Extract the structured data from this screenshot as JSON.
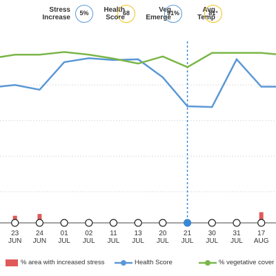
{
  "summary": [
    {
      "label": "Stress\nIncrease",
      "value": "5%",
      "color": "#5a97d6"
    },
    {
      "label": "Health\nScore",
      "value": "68",
      "color": "#f0c419"
    },
    {
      "label": "Veg\nEmerge",
      "value": "91%",
      "color": "#5a97d6"
    },
    {
      "label": "Avg\nTemp",
      "value": "81°",
      "color": "#f0c419"
    }
  ],
  "chart_data": {
    "type": "line",
    "categories": [
      null,
      "23\nJUN",
      "24\nJUN",
      "01\nJUL",
      "02\nJUL",
      "11\nJUL",
      "13\nJUL",
      "20\nJUL",
      "21\nJUL",
      "30\nJUL",
      "31\nJUL",
      "17\nAUG",
      null
    ],
    "series": [
      {
        "name": "% area with increased stress",
        "kind": "bar",
        "color": "#e05a5a",
        "values": [
          null,
          4,
          5,
          1,
          0,
          0,
          0,
          2,
          2,
          0,
          0,
          6,
          null
        ]
      },
      {
        "name": "Health Score",
        "kind": "line",
        "color": "#5a97d6",
        "values": [
          78.5,
          80,
          77.3,
          92.8,
          95,
          94,
          94.4,
          84.3,
          68,
          67.6,
          94.4,
          79,
          79
        ]
      },
      {
        "name": "% vegetative cover",
        "kind": "line",
        "color": "#7ab648",
        "values": [
          94.8,
          97,
          97,
          98.5,
          97,
          94.8,
          92,
          96,
          90,
          98,
          98,
          98,
          96.7
        ]
      }
    ],
    "ylim": [
      0,
      100
    ],
    "yticks": [
      20,
      40,
      60,
      80
    ],
    "grid": true,
    "selected": 8
  }
}
